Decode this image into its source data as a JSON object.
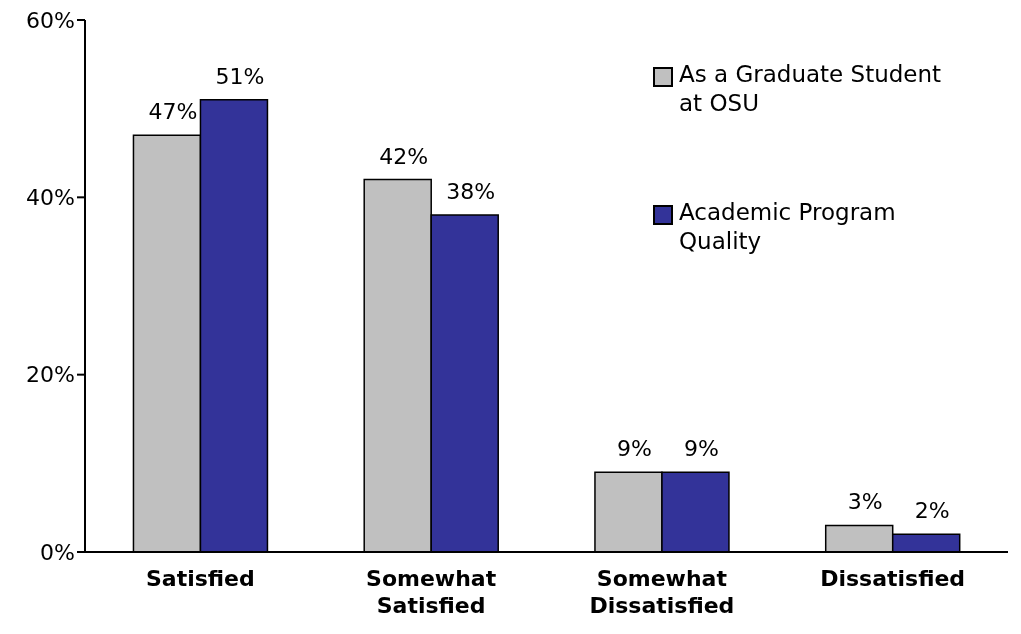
{
  "chart_data": {
    "type": "bar",
    "categories": [
      "Satisfied",
      "Somewhat Satisfied",
      "Somewhat Dissatisfied",
      "Dissatisfied"
    ],
    "series": [
      {
        "name": "As a Graduate Student at OSU",
        "color": "#c0c0c0",
        "values": [
          47,
          42,
          9,
          3
        ],
        "value_labels": [
          "47%",
          "42%",
          "9%",
          "3%"
        ]
      },
      {
        "name": "Academic Program Quality",
        "color": "#333399",
        "values": [
          51,
          38,
          9,
          2
        ],
        "value_labels": [
          "51%",
          "38%",
          "9%",
          "2%"
        ]
      }
    ],
    "ylim": [
      0,
      60
    ],
    "yticks": [
      {
        "value": 0,
        "label": "0%"
      },
      {
        "value": 20,
        "label": "20%"
      },
      {
        "value": 40,
        "label": "40%"
      },
      {
        "value": 60,
        "label": "60%"
      }
    ],
    "legend": "top right"
  }
}
